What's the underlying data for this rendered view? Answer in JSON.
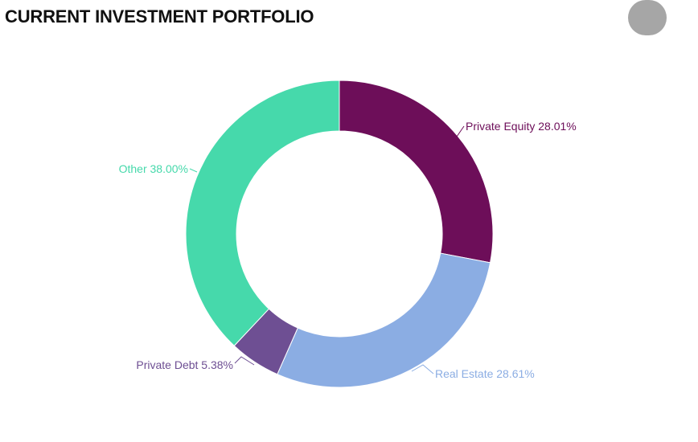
{
  "header": {
    "title": "CURRENT INVESTMENT PORTFOLIO"
  },
  "chart_data": {
    "type": "pie",
    "variant": "donut",
    "title": "CURRENT INVESTMENT PORTFOLIO",
    "slices": [
      {
        "label": "Private Equity",
        "value": 28.01,
        "value_label": "28.01%",
        "color": "#6d0e59"
      },
      {
        "label": "Real Estate",
        "value": 28.61,
        "value_label": "28.61%",
        "color": "#8badE3"
      },
      {
        "label": "Private Debt",
        "value": 5.38,
        "value_label": "5.38%",
        "color": "#6e4f93"
      },
      {
        "label": "Other",
        "value": 38.0,
        "value_label": "38.00%",
        "color": "#46d9ab"
      }
    ],
    "unit": "%",
    "legend": "none",
    "data_labels": "outside with leader lines"
  }
}
